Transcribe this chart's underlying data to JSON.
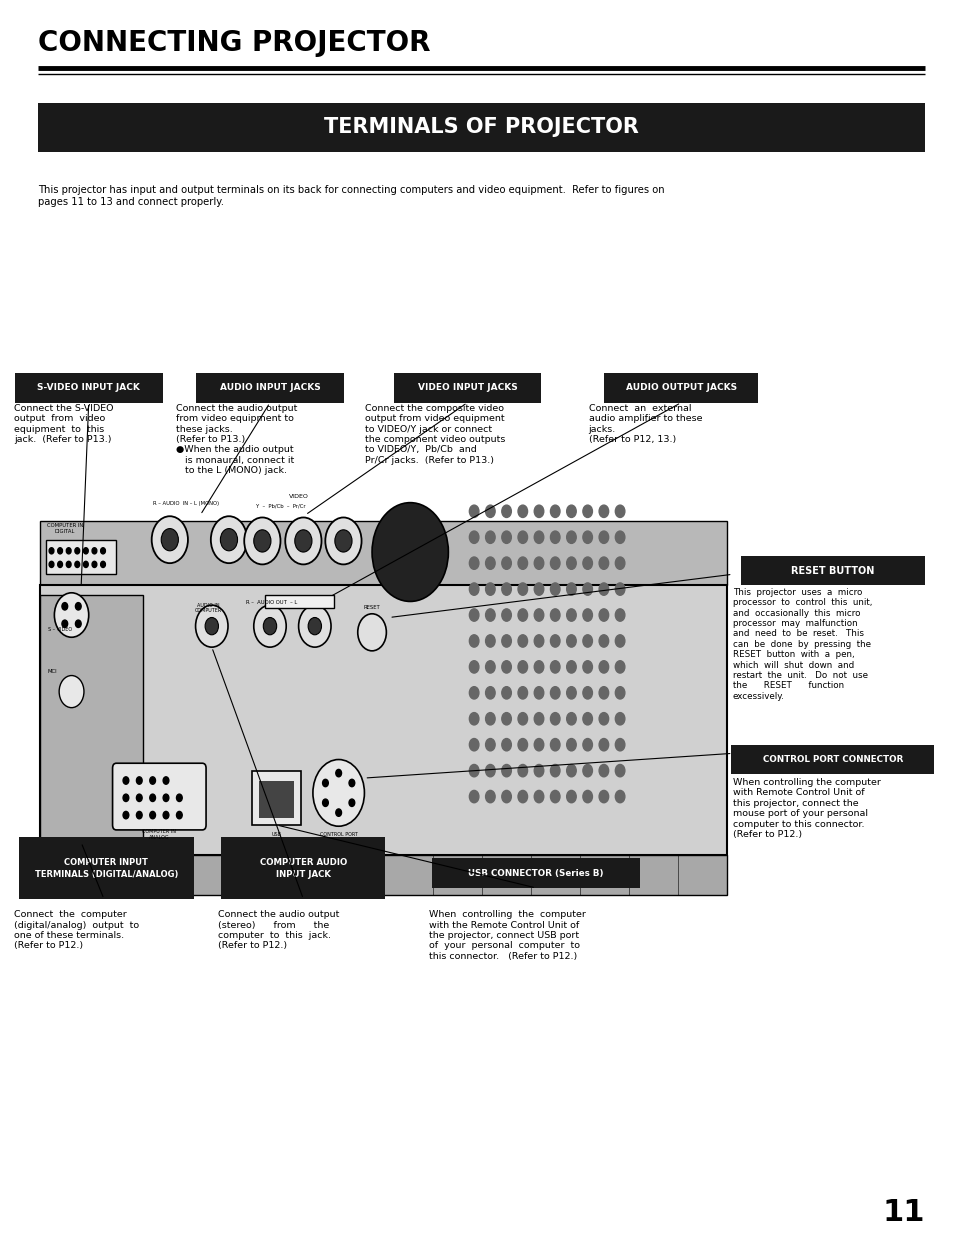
{
  "page_bg": "#ffffff",
  "title_main": "CONNECTING PROJECTOR",
  "title_sub": "TERMINALS OF PROJECTOR",
  "intro_text": "This projector has input and output terminals on its back for connecting computers and video equipment.  Refer to figures on\npages 11 to 13 and connect properly.",
  "desc_svideo": "Connect the S-VIDEO\noutput  from  video\nequipment  to  this\njack.  (Refer to P13.)",
  "desc_audio_in": "Connect the audio output\nfrom video equipment to\nthese jacks.\n(Refer to P13.)\n●When the audio output\n   is monaural, connect it\n   to the L (MONO) jack.",
  "desc_video_in": "Connect the composite video\noutput from video equipment\nto VIDEO/Y jack or connect\nthe component video outputs\nto VIDEO/Y,  Pb/Cb  and\nPr/Cr jacks.  (Refer to P13.)",
  "desc_audio_out": "Connect  an  external\naudio amplifier to these\njacks.\n(Refer to P12, 13.)",
  "desc_reset": "This  projector  uses  a  micro\nprocessor  to  control  this  unit,\nand  occasionally  this  micro\nprocessor  may  malfunction\nand  need  to  be  reset.   This\ncan  be  done  by  pressing  the\nRESET  button  with  a  pen,\nwhich  will  shut  down  and\nrestart  the  unit.   Do  not  use\nthe      RESET      function\nexcessively.",
  "desc_control": "When controlling the computer\nwith Remote Control Unit of\nthis projector, connect the\nmouse port of your personal\ncomputer to this connector.\n(Refer to P12.)",
  "desc_comp_input": "Connect  the  computer\n(digital/analog)  output  to\none of these terminals.\n(Refer to P12.)",
  "desc_comp_audio": "Connect the audio output\n(stereo)      from      the\ncomputer  to  this  jack.\n(Refer to P12.)",
  "desc_usb": "When  controlling  the  computer\nwith the Remote Control Unit of\nthe projector, connect USB port\nof  your  personal  computer  to\nthis connector.   (Refer to P12.)",
  "page_number": "11"
}
